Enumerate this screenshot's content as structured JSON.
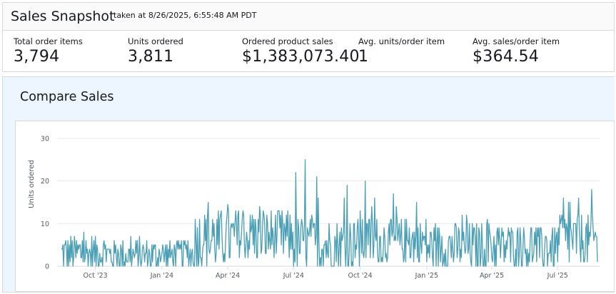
{
  "snapshot": {
    "title": "Sales Snapshot",
    "timestamp": "taken at 8/26/2025, 6:55:48 AM PDT",
    "metrics": [
      {
        "label": "Total order items",
        "value": "3,794"
      },
      {
        "label": "Units ordered",
        "value": "3,811"
      },
      {
        "label": "Ordered product sales",
        "value": "$1,383,073.40"
      },
      {
        "label": "Avg. units/order item",
        "value": "1"
      },
      {
        "label": "Avg. sales/order item",
        "value": "$364.54"
      }
    ]
  },
  "compare": {
    "title": "Compare Sales"
  },
  "chart_data": {
    "type": "line",
    "title": "",
    "xlabel": "",
    "ylabel": "Units ordered",
    "ylim": [
      0,
      30
    ],
    "y_ticks": [
      0,
      10,
      20,
      30
    ],
    "x_ticks": [
      "Oct '23",
      "Jan '24",
      "Apr '24",
      "Jul '24",
      "Oct '24",
      "Jan '25",
      "Apr '25",
      "Jul '25"
    ],
    "x_range": [
      "2023-08-15",
      "2025-08-25"
    ],
    "grid": true,
    "color": "#4a9fb5",
    "series": [
      {
        "name": "Units ordered",
        "frequency": "daily",
        "start": "2023-08-15",
        "segments": [
          {
            "from": "2023-08-15",
            "to": "2023-10-15",
            "mean": 3,
            "range": [
              0,
              9
            ]
          },
          {
            "from": "2023-10-15",
            "to": "2023-12-31",
            "mean": 2.5,
            "range": [
              0,
              8
            ]
          },
          {
            "from": "2024-01-01",
            "to": "2024-02-15",
            "mean": 2.5,
            "range": [
              0,
              7
            ]
          },
          {
            "from": "2024-02-15",
            "to": "2024-04-15",
            "mean": 6,
            "range": [
              0,
              15
            ]
          },
          {
            "from": "2024-04-15",
            "to": "2024-06-30",
            "mean": 7,
            "range": [
              2,
              14
            ]
          },
          {
            "from": "2024-07-01",
            "to": "2024-09-30",
            "mean": 5,
            "range": [
              0,
              25
            ]
          },
          {
            "from": "2024-10-01",
            "to": "2024-12-31",
            "mean": 5.5,
            "range": [
              1,
              20
            ]
          },
          {
            "from": "2025-01-01",
            "to": "2025-03-31",
            "mean": 4.5,
            "range": [
              0,
              13
            ]
          },
          {
            "from": "2025-04-01",
            "to": "2025-06-30",
            "mean": 4.5,
            "range": [
              0,
              10
            ]
          },
          {
            "from": "2025-07-01",
            "to": "2025-08-25",
            "mean": 6,
            "range": [
              1,
              18
            ]
          }
        ],
        "peaks": [
          {
            "date": "2024-03-05",
            "value": 15
          },
          {
            "date": "2024-04-01",
            "value": 14.5
          },
          {
            "date": "2024-05-15",
            "value": 14
          },
          {
            "date": "2024-07-17",
            "value": 25
          },
          {
            "date": "2024-10-08",
            "value": 20
          },
          {
            "date": "2024-10-17",
            "value": 14
          },
          {
            "date": "2024-11-20",
            "value": 14
          },
          {
            "date": "2025-02-25",
            "value": 12
          },
          {
            "date": "2025-07-18",
            "value": 15
          },
          {
            "date": "2025-08-17",
            "value": 18
          }
        ]
      }
    ]
  }
}
